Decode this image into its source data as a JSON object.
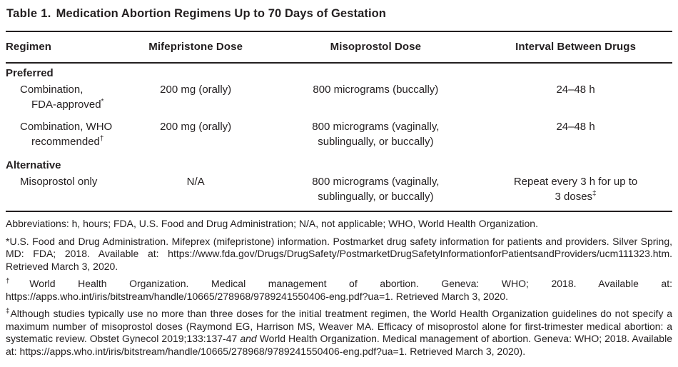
{
  "title": {
    "label": "Table 1.",
    "text": "Medication Abortion Regimens Up to 70 Days of Gestation"
  },
  "table": {
    "columns": [
      "Regimen",
      "Mifepristone Dose",
      "Misoprostol Dose",
      "Interval Between Drugs"
    ],
    "sections": [
      {
        "header": "Preferred",
        "rows": [
          {
            "regimen": {
              "line1": "Combination,",
              "line2": "FDA-approved",
              "sup": "*"
            },
            "mifepristone": "200 mg (orally)",
            "misoprostol": {
              "line1": "800 micrograms (buccally)",
              "line2": ""
            },
            "interval": {
              "line1": "24–48 h",
              "line2": "",
              "sup": ""
            }
          },
          {
            "regimen": {
              "line1": "Combination, WHO",
              "line2": "recommended",
              "sup": "†"
            },
            "mifepristone": "200 mg (orally)",
            "misoprostol": {
              "line1": "800 micrograms (vaginally,",
              "line2": "sublingually, or buccally)"
            },
            "interval": {
              "line1": "24–48 h",
              "line2": "",
              "sup": ""
            }
          }
        ]
      },
      {
        "header": "Alternative",
        "rows": [
          {
            "regimen": {
              "line1": "Misoprostol only",
              "line2": "",
              "sup": ""
            },
            "mifepristone": "N/A",
            "misoprostol": {
              "line1": "800 micrograms (vaginally,",
              "line2": "sublingually, or buccally)"
            },
            "interval": {
              "line1": "Repeat every 3 h for up to",
              "line2": "3 doses",
              "sup": "‡"
            }
          }
        ]
      }
    ]
  },
  "footnotes": {
    "abbreviations": "Abbreviations: h, hours; FDA, U.S. Food and Drug Administration; N/A, not applicable; WHO, World Health Organization.",
    "asterisk": {
      "marker": "*",
      "text": "U.S. Food and Drug Administration. Mifeprex (mifepristone) information. Postmarket drug safety information for patients and providers. Silver Spring, MD: FDA; 2018. Available at: https://www.fda.gov/Drugs/DrugSafety/PostmarketDrugSafetyInformationforPatientsandProviders/ucm111323.htm. Retrieved March 3, 2020."
    },
    "dagger": {
      "marker": "†",
      "text": "World Health Organization. Medical management of abortion. Geneva: WHO; 2018. Available at: https://apps.who.int/iris/bitstream/handle/10665/278968/9789241550406-eng.pdf?ua=1. Retrieved March 3, 2020."
    },
    "double_dagger": {
      "marker": "‡",
      "text_before_italic": "Although studies typically use no more than three doses for the initial treatment regimen, the World Health Organization guidelines do not specify a maximum number of misoprostol doses (Raymond EG, Harrison MS, Weaver MA. Efficacy of misoprostol alone for first-trimester medical abortion: a systematic review. Obstet Gynecol 2019;133:137-47 ",
      "italic": "and",
      "text_after_italic": " World Health Organization. Medical management of abortion. Geneva: WHO; 2018. Available at: https://apps.who.int/iris/bitstream/handle/10665/278968/9789241550406-eng.pdf?ua=1. Retrieved March 3, 2020)."
    }
  }
}
